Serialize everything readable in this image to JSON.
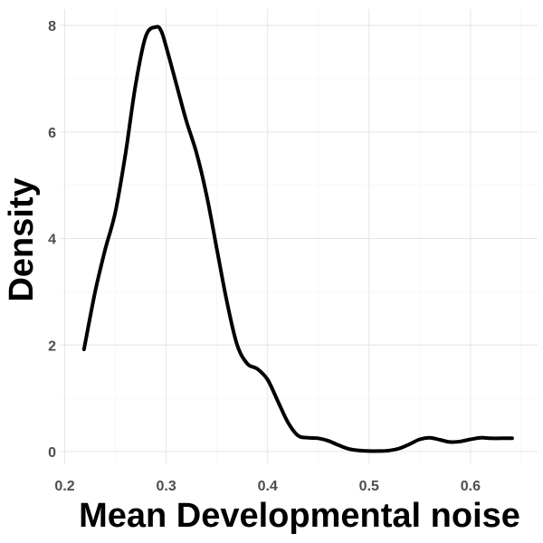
{
  "chart_data": {
    "type": "line",
    "xlabel": "Mean Developmental noise",
    "ylabel": "Density",
    "xlim": [
      0.2,
      0.65
    ],
    "ylim": [
      0,
      8.2
    ],
    "x_ticks": [
      0.2,
      0.3,
      0.4,
      0.5,
      0.6
    ],
    "x_tick_labels": [
      "0.2",
      "0.3",
      "0.4",
      "0.5",
      "0.6"
    ],
    "y_ticks": [
      0,
      2,
      4,
      6,
      8
    ],
    "y_tick_labels": [
      "0",
      "2",
      "4",
      "6",
      "8"
    ],
    "grid": true,
    "legend": "none",
    "line_color": "#000000",
    "series": [
      {
        "x": [
          0.219,
          0.23,
          0.24,
          0.25,
          0.26,
          0.27,
          0.28,
          0.29,
          0.295,
          0.3,
          0.31,
          0.32,
          0.33,
          0.34,
          0.35,
          0.36,
          0.37,
          0.38,
          0.39,
          0.4,
          0.41,
          0.42,
          0.43,
          0.44,
          0.45,
          0.46,
          0.47,
          0.48,
          0.49,
          0.5,
          0.51,
          0.52,
          0.53,
          0.54,
          0.55,
          0.56,
          0.57,
          0.58,
          0.59,
          0.6,
          0.61,
          0.62,
          0.63,
          0.641
        ],
        "y": [
          1.92,
          3.0,
          3.8,
          4.5,
          5.6,
          6.9,
          7.8,
          7.97,
          7.9,
          7.6,
          6.9,
          6.2,
          5.6,
          4.8,
          3.8,
          2.8,
          2.0,
          1.65,
          1.55,
          1.35,
          0.95,
          0.55,
          0.3,
          0.26,
          0.25,
          0.2,
          0.12,
          0.05,
          0.02,
          0.01,
          0.01,
          0.02,
          0.06,
          0.14,
          0.23,
          0.26,
          0.22,
          0.18,
          0.19,
          0.23,
          0.26,
          0.25,
          0.25,
          0.25
        ]
      }
    ]
  }
}
